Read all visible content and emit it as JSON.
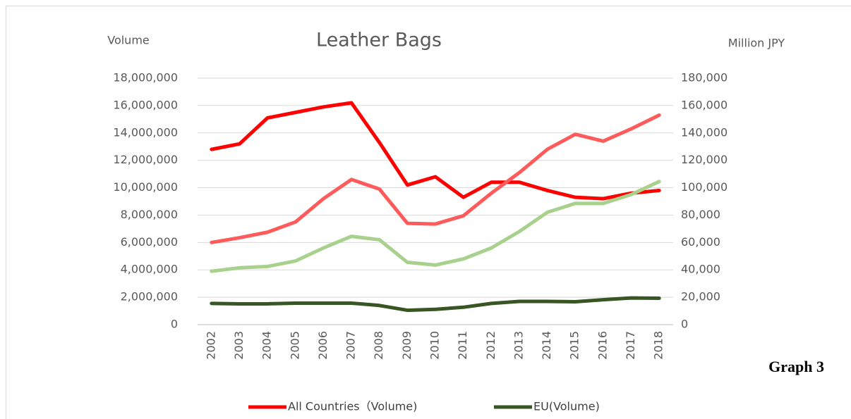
{
  "chart_data": {
    "type": "line",
    "title": "Leather Bags",
    "y_label": "Volume",
    "y2_label": "Million JPY",
    "annotation": "Graph 3",
    "categories": [
      "2002",
      "2003",
      "2004",
      "2005",
      "2006",
      "2007",
      "2008",
      "2009",
      "2010",
      "2011",
      "2012",
      "2013",
      "2014",
      "2015",
      "2016",
      "2017",
      "2018"
    ],
    "series": [
      {
        "name": "All Countries（Volume)",
        "color": "#ff0000",
        "values": [
          12800000,
          13200000,
          15100000,
          15500000,
          15900000,
          16200000,
          13300000,
          10200000,
          10800000,
          9300000,
          10400000,
          10400000,
          9800000,
          9300000,
          9200000,
          9600000,
          9800000
        ]
      },
      {
        "name": "EU(Volume)",
        "color": "#375623",
        "values": [
          1550000,
          1520000,
          1520000,
          1570000,
          1570000,
          1570000,
          1400000,
          1050000,
          1120000,
          1270000,
          1550000,
          1700000,
          1700000,
          1670000,
          1820000,
          1950000,
          1930000
        ]
      },
      {
        "color": "#ff5b5b",
        "axis": "y2",
        "values": [
          60000,
          63500,
          67500,
          75000,
          92000,
          106000,
          99000,
          74000,
          73500,
          79500,
          96000,
          111000,
          128000,
          139000,
          134000,
          143000,
          153000
        ]
      },
      {
        "color": "#a9d18e",
        "axis": "y2",
        "values": [
          39000,
          41500,
          42500,
          46500,
          56000,
          64500,
          62000,
          45500,
          43500,
          48000,
          56000,
          68000,
          82000,
          88500,
          88500,
          95000,
          104500
        ]
      }
    ],
    "ylim": [
      0,
      18000000
    ],
    "yticks": [
      0,
      {
        "value": 2000000,
        "label": "2,000,000"
      },
      {
        "value": 4000000,
        "label": "4,000,000"
      },
      {
        "value": 6000000,
        "label": "6,000,000"
      },
      {
        "value": 8000000,
        "label": "8,000,000"
      },
      {
        "value": 10000000,
        "label": "10,000,000"
      },
      {
        "value": 12000000,
        "label": "12,000,000"
      },
      {
        "value": 14000000,
        "label": "14,000,000"
      },
      {
        "value": 16000000,
        "label": "16,000,000"
      },
      {
        "value": 18000000,
        "label": "18,000,000"
      }
    ],
    "y2lim": [
      0,
      180000
    ],
    "y2ticks": [
      0,
      {
        "value": 20000,
        "label": "20,000"
      },
      {
        "value": 40000,
        "label": "40,000"
      },
      {
        "value": 60000,
        "label": "60,000"
      },
      {
        "value": 80000,
        "label": "80,000"
      },
      {
        "value": 100000,
        "label": "100,000"
      },
      {
        "value": 120000,
        "label": "120,000"
      },
      {
        "value": 140000,
        "label": "140,000"
      },
      {
        "value": 160000,
        "label": "160,000"
      },
      {
        "value": 180000,
        "label": "180,000"
      }
    ],
    "grid": true
  }
}
